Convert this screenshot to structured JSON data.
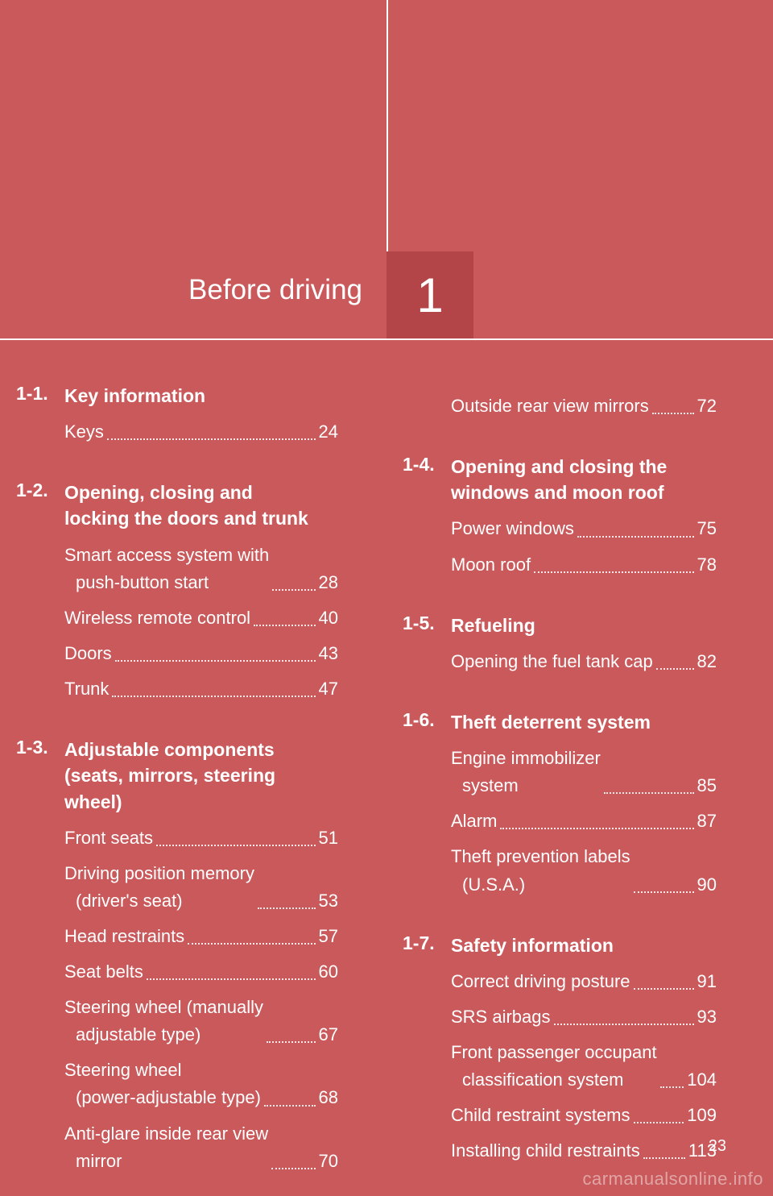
{
  "chapter": {
    "number": "1",
    "title": "Before driving"
  },
  "page_number": "23",
  "watermark": "carmanualsonline.info",
  "columns": {
    "left": [
      {
        "num": "1-1.",
        "heading": "Key information",
        "entries": [
          {
            "label": "Keys",
            "page": "24"
          }
        ]
      },
      {
        "num": "1-2.",
        "heading": "Opening, closing and locking the doors and trunk",
        "entries": [
          {
            "label": "Smart access system with",
            "label2": "push-button start",
            "page": "28"
          },
          {
            "label": "Wireless remote control",
            "page": "40"
          },
          {
            "label": "Doors",
            "page": "43"
          },
          {
            "label": "Trunk",
            "page": "47"
          }
        ]
      },
      {
        "num": "1-3.",
        "heading": "Adjustable components (seats, mirrors, steering wheel)",
        "entries": [
          {
            "label": "Front seats",
            "page": "51"
          },
          {
            "label": "Driving position memory",
            "label2": "(driver's seat)",
            "page": "53"
          },
          {
            "label": "Head restraints",
            "page": "57"
          },
          {
            "label": "Seat belts",
            "page": "60"
          },
          {
            "label": "Steering wheel (manually",
            "label2": "adjustable type)",
            "page": "67"
          },
          {
            "label": "Steering wheel",
            "label2": "(power-adjustable type)",
            "page": "68"
          },
          {
            "label": "Anti-glare inside rear view",
            "label2": "mirror",
            "page": "70"
          }
        ]
      }
    ],
    "right": [
      {
        "num": "",
        "heading": "",
        "entries": [
          {
            "label": "Outside rear view mirrors",
            "page": "72"
          }
        ]
      },
      {
        "num": "1-4.",
        "heading": "Opening and closing the windows and moon roof",
        "entries": [
          {
            "label": "Power windows",
            "page": "75"
          },
          {
            "label": "Moon roof",
            "page": "78"
          }
        ]
      },
      {
        "num": "1-5.",
        "heading": "Refueling",
        "entries": [
          {
            "label": "Opening the fuel tank cap",
            "page": "82"
          }
        ]
      },
      {
        "num": "1-6.",
        "heading": "Theft deterrent system",
        "entries": [
          {
            "label": "Engine immobilizer",
            "label2": "system",
            "page": "85"
          },
          {
            "label": "Alarm",
            "page": "87"
          },
          {
            "label": "Theft prevention labels",
            "label2": "(U.S.A.)",
            "page": "90"
          }
        ]
      },
      {
        "num": "1-7.",
        "heading": "Safety information",
        "entries": [
          {
            "label": "Correct driving posture",
            "page": "91"
          },
          {
            "label": "SRS airbags",
            "page": "93"
          },
          {
            "label": "Front passenger occupant",
            "label2": "classification system",
            "page": "104"
          },
          {
            "label": "Child restraint systems",
            "page": "109"
          },
          {
            "label": "Installing child restraints",
            "page": "113"
          }
        ]
      }
    ]
  }
}
